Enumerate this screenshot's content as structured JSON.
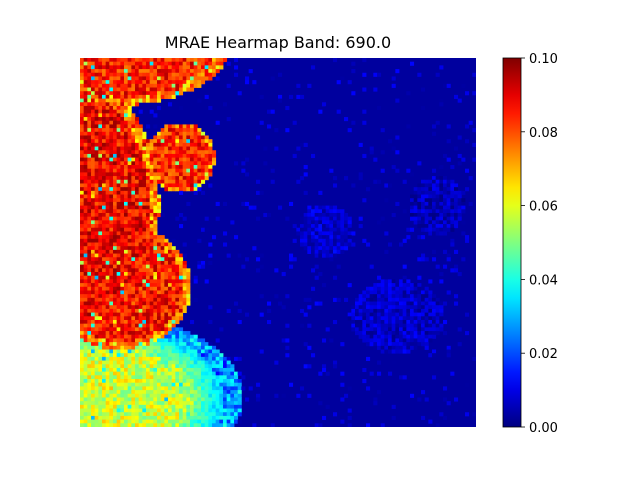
{
  "chart_data": {
    "type": "heatmap",
    "title": "MRAE Hearmap Band: 690.0",
    "xlabel": "",
    "ylabel": "",
    "colormap": "jet",
    "value_range": [
      0.0,
      0.1
    ],
    "colorbar": {
      "min": 0.0,
      "max": 0.1,
      "ticks": [
        {
          "value": 0.0,
          "label": "0.00"
        },
        {
          "value": 0.02,
          "label": "0.02"
        },
        {
          "value": 0.04,
          "label": "0.04"
        },
        {
          "value": 0.06,
          "label": "0.06"
        },
        {
          "value": 0.08,
          "label": "0.08"
        },
        {
          "value": 0.1,
          "label": "0.10"
        }
      ]
    },
    "grid_size": {
      "columns": 108,
      "rows": 100
    },
    "background_value": 0.003,
    "regions": [
      {
        "name": "top-left-blob",
        "shape": "ellipse",
        "center": [
          0.08,
          -0.04
        ],
        "radii": [
          0.3,
          0.17
        ],
        "value": 0.085
      },
      {
        "name": "small-round-blob",
        "shape": "ellipse",
        "center": [
          0.255,
          0.27
        ],
        "radii": [
          0.085,
          0.095
        ],
        "value": 0.085
      },
      {
        "name": "left-upper-blob",
        "shape": "ellipse",
        "center": [
          0.0,
          0.4
        ],
        "radii": [
          0.2,
          0.34
        ],
        "value": 0.088
      },
      {
        "name": "left-middle-blob",
        "shape": "ellipse",
        "center": [
          0.1,
          0.62
        ],
        "radii": [
          0.18,
          0.17
        ],
        "value": 0.086
      },
      {
        "name": "bottom-left-warm-blob",
        "shape": "ellipse",
        "center": [
          0.08,
          0.92
        ],
        "radii": [
          0.33,
          0.22
        ],
        "value": 0.055
      },
      {
        "name": "faint-right-blob-1",
        "shape": "ellipse",
        "center": [
          0.62,
          0.47
        ],
        "radii": [
          0.07,
          0.07
        ],
        "value": 0.008
      },
      {
        "name": "faint-right-blob-2",
        "shape": "ellipse",
        "center": [
          0.8,
          0.7
        ],
        "radii": [
          0.12,
          0.1
        ],
        "value": 0.007
      },
      {
        "name": "faint-right-blob-3",
        "shape": "ellipse",
        "center": [
          0.9,
          0.4
        ],
        "radii": [
          0.07,
          0.08
        ],
        "value": 0.006
      }
    ]
  }
}
